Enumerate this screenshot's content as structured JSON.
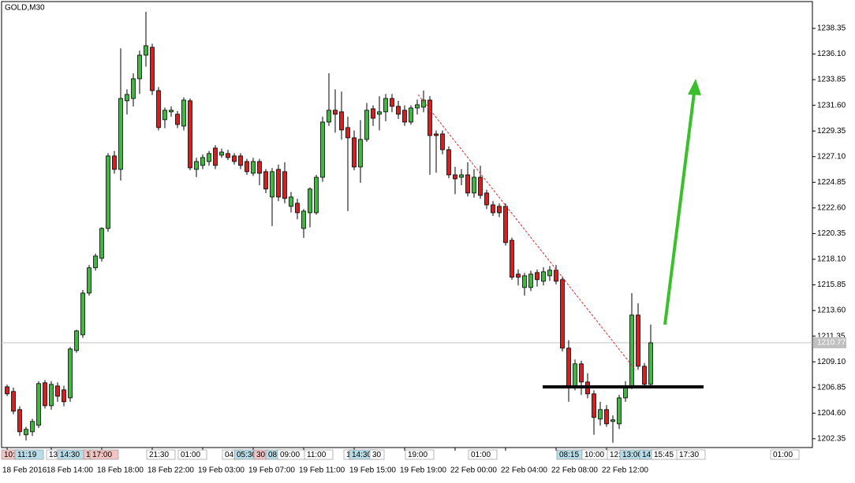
{
  "chart_data": {
    "type": "candlestick",
    "title": "GOLD,M30",
    "categories": [
      "18 Feb 2016",
      null,
      null,
      null,
      null,
      null,
      null,
      "18 Feb 14:00",
      null,
      null,
      null,
      null,
      null,
      null,
      null,
      "18 Feb 18:00",
      null,
      null,
      null,
      null,
      null,
      null,
      null,
      "18 Feb 22:00",
      null,
      null,
      null,
      null,
      null,
      null,
      null,
      "19 Feb 03:00",
      null,
      null,
      null,
      null,
      null,
      null,
      null,
      "19 Feb 07:00",
      null,
      null,
      null,
      null,
      null,
      null,
      null,
      "19 Feb 11:00",
      null,
      null,
      null,
      null,
      null,
      null,
      null,
      "19 Feb 15:00",
      null,
      null,
      null,
      null,
      null,
      null,
      null,
      "19 Feb 19:00",
      null,
      null,
      null,
      null,
      null,
      null,
      null,
      "22 Feb 00:00",
      null,
      null,
      null,
      null,
      null,
      null,
      null,
      "22 Feb 04:00",
      null,
      null,
      null,
      null,
      null,
      null,
      null,
      "22 Feb 08:00",
      null,
      null,
      null,
      null,
      null,
      null,
      null,
      "22 Feb 12:00",
      null,
      null,
      null,
      null,
      null,
      null,
      null
    ],
    "open": [
      1206.91,
      1206.5,
      1204.91,
      1202.7,
      1202.97,
      1203.53,
      1207.26,
      1205.25,
      1206.98,
      1206.64,
      1205.94,
      1210.09,
      1211.47,
      1215.13,
      1217.35,
      1218.18,
      1220.8,
      1227.16,
      1225.98,
      1232.0,
      1232.2,
      1233.93,
      1236.0,
      1236.69,
      1232.89,
      1230.34,
      1231.03,
      1230.82,
      1229.78,
      1232.0,
      1225.98,
      1226.33,
      1226.67,
      1227.85,
      1227.23,
      1227.37,
      1227.16,
      1227.16,
      1226.67,
      1225.64,
      1226.67,
      1225.78,
      1223.56,
      1225.98,
      1225.78,
      1222.74,
      1223.01,
      1220.8,
      1222.18,
      1222.18,
      1225.29,
      1230.13,
      1231.17,
      1231.03,
      1229.65,
      1228.75,
      1226.19,
      1228.61,
      1231.3,
      1230.82,
      1231.03,
      1232.2,
      1231.51,
      1231.17,
      1230.13,
      1231.37,
      1231.44,
      1232.06,
      1229.09,
      1229.09,
      1227.71,
      1225.5,
      1225.29,
      1225.5,
      1223.91,
      1225.29,
      1223.91,
      1222.87,
      1222.74,
      1222.74,
      1219.76,
      1216.79,
      1215.62,
      1215.62,
      1216.93,
      1216.17,
      1216.65,
      1217.14,
      1216.31,
      1210.3,
      1206.98,
      1208.92,
      1207.33,
      1206.29,
      1204.08,
      1204.91,
      1203.87,
      1203.66,
      1205.94,
      1206.98,
      1213.2,
      1208.71,
      1207.12
    ],
    "high": [
      1207.1,
      1206.85,
      1205.2,
      1203.4,
      1204.1,
      1207.4,
      1207.5,
      1207.4,
      1207.3,
      1207.0,
      1210.4,
      1211.9,
      1215.4,
      1217.6,
      1218.6,
      1220.9,
      1227.4,
      1227.6,
      1236.6,
      1233.0,
      1234.4,
      1236.4,
      1239.8,
      1237.0,
      1233.2,
      1231.4,
      1231.5,
      1231.1,
      1232.3,
      1232.2,
      1227.0,
      1227.3,
      1227.6,
      1228.1,
      1227.8,
      1227.7,
      1227.4,
      1227.4,
      1226.9,
      1227.0,
      1226.9,
      1226.0,
      1226.1,
      1226.4,
      1226.6,
      1224.0,
      1223.4,
      1222.5,
      1224.4,
      1225.5,
      1230.6,
      1234.41,
      1233.0,
      1232.8,
      1230.6,
      1229.4,
      1230.3,
      1231.8,
      1231.6,
      1232.4,
      1232.6,
      1232.6,
      1232.0,
      1231.6,
      1231.6,
      1232.1,
      1232.9,
      1232.4,
      1229.4,
      1229.4,
      1228.0,
      1226.2,
      1226.0,
      1226.6,
      1226.0,
      1226.3,
      1224.2,
      1223.2,
      1223.0,
      1223.0,
      1220.0,
      1217.2,
      1216.9,
      1217.1,
      1217.2,
      1217.4,
      1217.5,
      1217.6,
      1216.6,
      1211.0,
      1209.3,
      1209.2,
      1208.1,
      1206.6,
      1205.6,
      1205.3,
      1204.4,
      1206.2,
      1207.4,
      1215.13,
      1214.24,
      1209.0,
      1212.37
    ],
    "low": [
      1206.1,
      1204.5,
      1202.6,
      1202.2,
      1202.6,
      1203.3,
      1205.0,
      1204.9,
      1205.6,
      1205.2,
      1205.6,
      1209.9,
      1211.2,
      1214.9,
      1217.1,
      1217.9,
      1220.5,
      1225.6,
      1225.0,
      1230.8,
      1231.5,
      1232.6,
      1235.0,
      1232.5,
      1229.4,
      1229.6,
      1230.6,
      1229.6,
      1229.4,
      1225.9,
      1225.3,
      1226.0,
      1226.3,
      1226.0,
      1227.0,
      1226.8,
      1226.4,
      1226.0,
      1225.5,
      1225.4,
      1224.6,
      1223.9,
      1221.0,
      1223.2,
      1223.0,
      1222.2,
      1221.6,
      1219.97,
      1220.9,
      1222.0,
      1224.9,
      1229.8,
      1229.2,
      1228.6,
      1222.32,
      1225.9,
      1224.8,
      1228.4,
      1229.8,
      1229.4,
      1230.2,
      1231.0,
      1230.4,
      1229.8,
      1229.9,
      1230.8,
      1231.0,
      1225.5,
      1225.7,
      1227.3,
      1225.2,
      1223.8,
      1224.6,
      1223.6,
      1223.5,
      1223.4,
      1222.5,
      1221.9,
      1221.8,
      1219.3,
      1216.3,
      1215.8,
      1214.9,
      1215.3,
      1215.7,
      1215.8,
      1216.2,
      1215.9,
      1210.0,
      1205.6,
      1206.6,
      1206.2,
      1205.9,
      1202.7,
      1203.5,
      1203.4,
      1202.0,
      1203.2,
      1205.6,
      1206.7,
      1208.4,
      1206.9,
      1206.8
    ],
    "close": [
      1206.29,
      1204.77,
      1202.97,
      1203.18,
      1203.87,
      1207.19,
      1205.25,
      1207.12,
      1206.08,
      1205.6,
      1210.23,
      1211.82,
      1215.13,
      1217.35,
      1218.38,
      1220.8,
      1227.16,
      1225.98,
      1232.2,
      1232.55,
      1233.93,
      1236.0,
      1236.83,
      1232.89,
      1229.65,
      1231.17,
      1231.17,
      1229.92,
      1232.06,
      1226.12,
      1226.67,
      1227.02,
      1227.37,
      1226.33,
      1227.5,
      1227.02,
      1226.67,
      1226.33,
      1225.78,
      1226.67,
      1225.64,
      1224.26,
      1225.78,
      1223.56,
      1223.43,
      1223.56,
      1222.18,
      1222.32,
      1224.26,
      1225.29,
      1230.13,
      1231.17,
      1230.82,
      1229.44,
      1228.75,
      1226.19,
      1228.61,
      1231.17,
      1230.47,
      1231.03,
      1232.2,
      1231.51,
      1230.82,
      1230.13,
      1231.37,
      1231.65,
      1232.06,
      1228.95,
      1228.95,
      1227.71,
      1225.5,
      1225.15,
      1225.5,
      1223.91,
      1225.29,
      1223.7,
      1222.87,
      1222.18,
      1222.18,
      1219.56,
      1216.52,
      1216.52,
      1216.65,
      1216.79,
      1216.31,
      1217.0,
      1217.14,
      1216.17,
      1210.3,
      1206.98,
      1208.92,
      1207.33,
      1206.29,
      1204.22,
      1204.91,
      1203.66,
      1204.01,
      1205.94,
      1206.98,
      1213.2,
      1208.71,
      1207.12,
      1210.77
    ],
    "up_color": "#3fb83f",
    "down_color": "#d81e1e",
    "ylim": [
      1201.58,
      1240.7
    ],
    "yticks": [
      1238.35,
      {
        "value": 1236.1,
        "label": "1236.10"
      },
      1233.85,
      {
        "value": 1231.6,
        "label": "1231.60"
      },
      1229.35,
      {
        "value": 1227.1,
        "label": "1227.10"
      },
      1224.85,
      {
        "value": 1222.6,
        "label": "1222.60"
      },
      1220.35,
      {
        "value": 1218.1,
        "label": "1218.10"
      },
      1215.85,
      {
        "value": 1213.6,
        "label": "1213.60"
      },
      1211.35,
      {
        "value": 1209.1,
        "label": "1209.10"
      },
      1206.85,
      {
        "value": 1204.6,
        "label": "1204.60"
      },
      1202.35
    ],
    "current_price": 1210.77,
    "grid": false,
    "time_markers": [
      {
        "label": "10:",
        "color": "#f3c4c4"
      },
      {
        "label": "11:19",
        "color": "#b9dde8"
      },
      {
        "label": "13:",
        "color": "#ffffff"
      },
      {
        "label": "14:30",
        "color": "#b9dde8"
      },
      {
        "label": "1",
        "color": "#f3c4c4"
      },
      {
        "label": "17:00",
        "color": "#f3c4c4"
      },
      {
        "label": "21:30",
        "color": "#ffffff"
      },
      {
        "label": "01:00",
        "color": "#ffffff"
      },
      {
        "label": "04:",
        "color": "#ffffff"
      },
      {
        "label": "05:30",
        "color": "#b9dde8"
      },
      {
        "label": "30",
        "color": "#f3c4c4"
      },
      {
        "label": "08:",
        "color": "#b9dde8"
      },
      {
        "label": "09:00",
        "color": "#ffffff"
      },
      {
        "label": "11:00",
        "color": "#ffffff"
      },
      {
        "label": "1",
        "color": "#ffffff"
      },
      {
        "label": "14:30",
        "color": "#b9dde8"
      },
      {
        "label": "30",
        "color": "#ffffff"
      },
      {
        "label": "19:00",
        "color": "#ffffff"
      },
      {
        "label": "01:00",
        "color": "#ffffff"
      },
      {
        "label": "08:15",
        "color": "#b9dde8"
      },
      {
        "label": "10:00",
        "color": "#ffffff"
      },
      {
        "label": "12:",
        "color": "#ffffff"
      },
      {
        "label": "13:00",
        "color": "#b9dde8"
      },
      {
        "label": "14:",
        "color": "#b9dde8"
      },
      {
        "label": "15:45",
        "color": "#ffffff"
      },
      {
        "label": "17:30",
        "color": "#ffffff"
      },
      {
        "label": "01:00",
        "color": "#ffffff"
      }
    ]
  }
}
